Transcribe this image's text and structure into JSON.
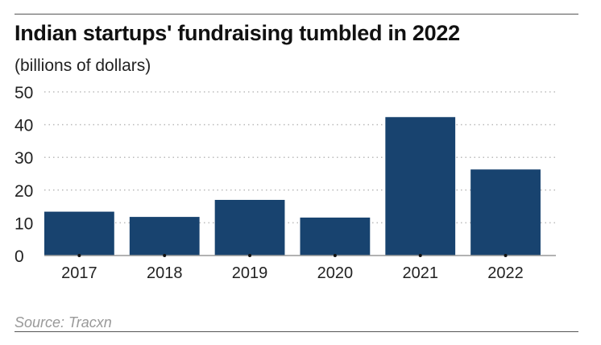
{
  "chart_data": {
    "type": "bar",
    "title": "Indian startups' fundraising tumbled in 2022",
    "subtitle": "(billions of dollars)",
    "categories": [
      "2017",
      "2018",
      "2019",
      "2020",
      "2021",
      "2022"
    ],
    "values": [
      13.4,
      11.8,
      17.0,
      11.6,
      42.3,
      26.3
    ],
    "yticks": [
      "0",
      "10",
      "20",
      "30",
      "40",
      "50"
    ],
    "ylim": [
      0,
      50
    ],
    "grid": true,
    "bar_color": "#18436f",
    "source": "Source: Tracxn"
  }
}
